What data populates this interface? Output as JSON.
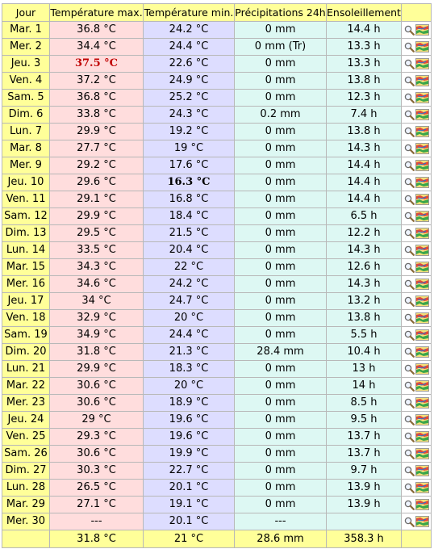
{
  "headers": {
    "day": "Jour",
    "tmax": "Température max.",
    "tmin": "Température min.",
    "precip": "Précipitations 24h",
    "sun": "Ensoleillement"
  },
  "rows": [
    {
      "day": "Mar. 1",
      "tmax": "36.8 °C",
      "tmin": "24.2 °C",
      "precip": "0 mm",
      "sun": "14.4 h"
    },
    {
      "day": "Mer. 2",
      "tmax": "34.4 °C",
      "tmin": "24.4 °C",
      "precip": "0 mm (Tr)",
      "sun": "13.3 h"
    },
    {
      "day": "Jeu. 3",
      "tmax": "37.5 °C",
      "tmin": "22.6 °C",
      "precip": "0 mm",
      "sun": "13.3 h",
      "max_record": true
    },
    {
      "day": "Ven. 4",
      "tmax": "37.2 °C",
      "tmin": "24.9 °C",
      "precip": "0 mm",
      "sun": "13.8 h"
    },
    {
      "day": "Sam. 5",
      "tmax": "36.8 °C",
      "tmin": "25.2 °C",
      "precip": "0 mm",
      "sun": "12.3 h"
    },
    {
      "day": "Dim. 6",
      "tmax": "33.8 °C",
      "tmin": "24.3 °C",
      "precip": "0.2 mm",
      "sun": "7.4 h"
    },
    {
      "day": "Lun. 7",
      "tmax": "29.9 °C",
      "tmin": "19.2 °C",
      "precip": "0 mm",
      "sun": "13.8 h"
    },
    {
      "day": "Mar. 8",
      "tmax": "27.7 °C",
      "tmin": "19 °C",
      "precip": "0 mm",
      "sun": "14.3 h"
    },
    {
      "day": "Mer. 9",
      "tmax": "29.2 °C",
      "tmin": "17.6 °C",
      "precip": "0 mm",
      "sun": "14.4 h"
    },
    {
      "day": "Jeu. 10",
      "tmax": "29.6 °C",
      "tmin": "16.3 °C",
      "precip": "0 mm",
      "sun": "14.4 h",
      "min_record": true
    },
    {
      "day": "Ven. 11",
      "tmax": "29.1 °C",
      "tmin": "16.8 °C",
      "precip": "0 mm",
      "sun": "14.4 h"
    },
    {
      "day": "Sam. 12",
      "tmax": "29.9 °C",
      "tmin": "18.4 °C",
      "precip": "0 mm",
      "sun": "6.5 h"
    },
    {
      "day": "Dim. 13",
      "tmax": "29.5 °C",
      "tmin": "21.5 °C",
      "precip": "0 mm",
      "sun": "12.2 h"
    },
    {
      "day": "Lun. 14",
      "tmax": "33.5 °C",
      "tmin": "20.4 °C",
      "precip": "0 mm",
      "sun": "14.3 h"
    },
    {
      "day": "Mar. 15",
      "tmax": "34.3 °C",
      "tmin": "22 °C",
      "precip": "0 mm",
      "sun": "12.6 h"
    },
    {
      "day": "Mer. 16",
      "tmax": "34.6 °C",
      "tmin": "24.2 °C",
      "precip": "0 mm",
      "sun": "14.3 h"
    },
    {
      "day": "Jeu. 17",
      "tmax": "34 °C",
      "tmin": "24.7 °C",
      "precip": "0 mm",
      "sun": "13.2 h"
    },
    {
      "day": "Ven. 18",
      "tmax": "32.9 °C",
      "tmin": "20 °C",
      "precip": "0 mm",
      "sun": "13.8 h"
    },
    {
      "day": "Sam. 19",
      "tmax": "34.9 °C",
      "tmin": "24.4 °C",
      "precip": "0 mm",
      "sun": "5.5 h"
    },
    {
      "day": "Dim. 20",
      "tmax": "31.8 °C",
      "tmin": "21.3 °C",
      "precip": "28.4 mm",
      "sun": "10.4 h"
    },
    {
      "day": "Lun. 21",
      "tmax": "29.9 °C",
      "tmin": "18.3 °C",
      "precip": "0 mm",
      "sun": "13 h"
    },
    {
      "day": "Mar. 22",
      "tmax": "30.6 °C",
      "tmin": "20 °C",
      "precip": "0 mm",
      "sun": "14 h"
    },
    {
      "day": "Mer. 23",
      "tmax": "30.6 °C",
      "tmin": "18.9 °C",
      "precip": "0 mm",
      "sun": "8.5 h"
    },
    {
      "day": "Jeu. 24",
      "tmax": "29 °C",
      "tmin": "19.6 °C",
      "precip": "0 mm",
      "sun": "9.5 h"
    },
    {
      "day": "Ven. 25",
      "tmax": "29.3 °C",
      "tmin": "19.6 °C",
      "precip": "0 mm",
      "sun": "13.7 h"
    },
    {
      "day": "Sam. 26",
      "tmax": "30.6 °C",
      "tmin": "19.9 °C",
      "precip": "0 mm",
      "sun": "13.7 h"
    },
    {
      "day": "Dim. 27",
      "tmax": "30.3 °C",
      "tmin": "22.7 °C",
      "precip": "0 mm",
      "sun": "9.7 h"
    },
    {
      "day": "Lun. 28",
      "tmax": "26.5 °C",
      "tmin": "20.1 °C",
      "precip": "0 mm",
      "sun": "13.9 h"
    },
    {
      "day": "Mar. 29",
      "tmax": "27.1 °C",
      "tmin": "19.1 °C",
      "precip": "0 mm",
      "sun": "13.9 h"
    },
    {
      "day": "Mer. 30",
      "tmax": "---",
      "tmin": "20.1 °C",
      "precip": "---",
      "sun": ""
    }
  ],
  "footer": {
    "day": "",
    "tmax": "31.8 °C",
    "tmin": "21 °C",
    "precip": "28.6 mm",
    "sun": "358.3 h"
  },
  "row_icons": [
    "magnifier-icon",
    "weather-map-icon"
  ],
  "colors": {
    "header_bg": "#ffff99",
    "tmax_bg": "#ffdddd",
    "tmin_bg": "#ddddff",
    "precip_sun_bg": "#ddf8f3",
    "max_record_text": "#c00000"
  }
}
